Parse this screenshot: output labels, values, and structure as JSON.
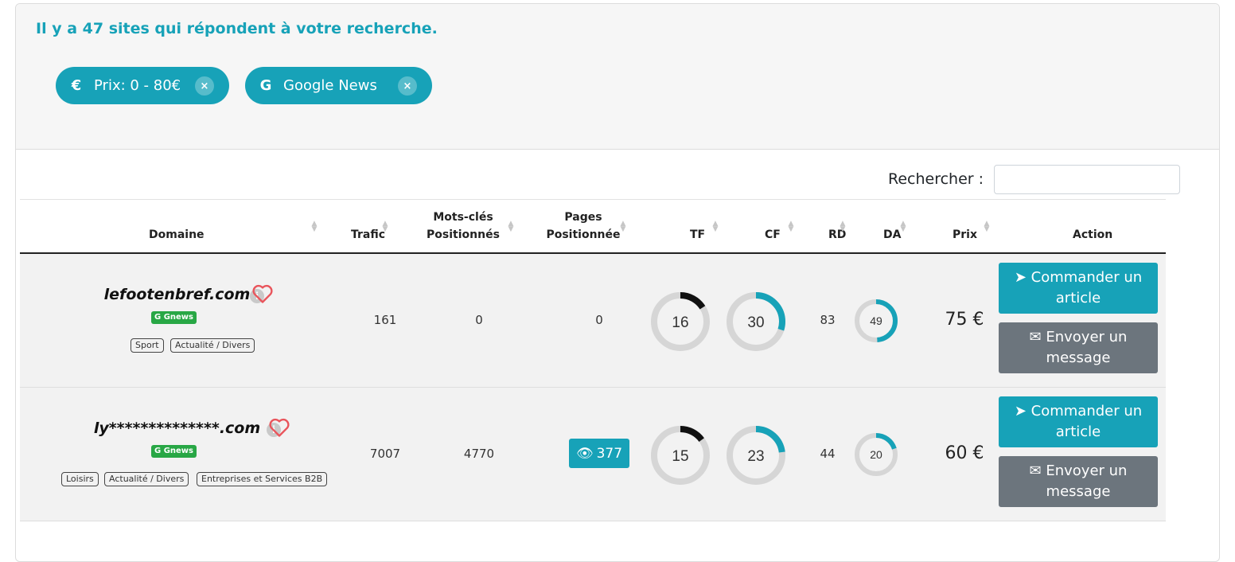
{
  "header": {
    "result_text": "Il y a 47 sites qui répondent à votre recherche.",
    "filters": [
      {
        "icon": "euro-icon",
        "icon_glyph": "€",
        "label": "Prix: 0 - 80€",
        "close": "×"
      },
      {
        "icon": "google-icon",
        "icon_glyph": "G",
        "label": "Google News",
        "close": "×"
      }
    ]
  },
  "search": {
    "label": "Rechercher :",
    "value": ""
  },
  "table": {
    "columns": {
      "domaine": "Domaine",
      "trafic": "Trafic",
      "mots_l1": "Mots-clés",
      "mots_l2": "Positionnés",
      "pages_l1": "Pages",
      "pages_l2": "Positionnée",
      "tf": "TF",
      "cf": "CF",
      "rd": "RD",
      "da": "DA",
      "prix": "Prix",
      "action": "Action"
    },
    "rows": [
      {
        "domain": "lefootenbref.com",
        "info": "i",
        "badge": "G Gnews",
        "tags": [
          "Sport",
          "Actualité / Divers"
        ],
        "trafic": "161",
        "mots_cles": "0",
        "pages": "0",
        "pages_button": false,
        "tf": 16,
        "cf": 30,
        "rd": "83",
        "da": 49,
        "prix": "75 €",
        "order_l1": "Commander un",
        "order_l2": "article",
        "msg_l1": "Envoyer un",
        "msg_l2": "message"
      },
      {
        "domain": "ly**************.com",
        "info": "i",
        "badge": "G Gnews",
        "tags": [
          "Loisirs",
          "Actualité / Divers",
          "Entreprises et Services B2B"
        ],
        "trafic": "7007",
        "mots_cles": "4770",
        "pages": "377",
        "pages_button": true,
        "tf": 15,
        "cf": 23,
        "rd": "44",
        "da": 20,
        "prix": "60 €",
        "order_l1": "Commander un",
        "order_l2": "article",
        "msg_l1": "Envoyer un",
        "msg_l2": "message"
      }
    ]
  },
  "colors": {
    "accent": "#17a2b8",
    "gnews": "#28a745",
    "tf_arc": "#111111",
    "secondary": "#6c757d",
    "heart": "#e9545b"
  }
}
